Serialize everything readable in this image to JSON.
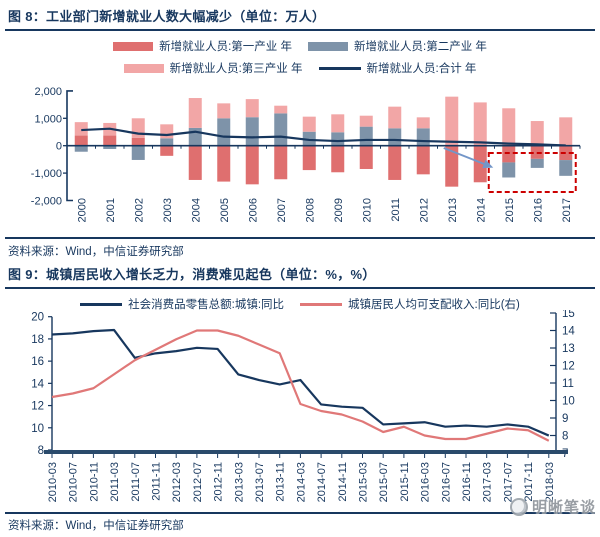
{
  "colors": {
    "navy": "#17375e",
    "axis_bar": "#2a4a6b",
    "bar_first_industry": "#df6f6f",
    "bar_second_industry": "#7e93a9",
    "bar_third_industry": "#f2a6a6",
    "line_total": "#17375e",
    "line_retail": "#17375e",
    "line_income": "#e07878",
    "dashed_box": "#cc0000",
    "arrow_blue": "#7396c8",
    "watermark_gray": "#8d939a"
  },
  "sources": {
    "figure8": "资料来源：Wind，中信证券研究部",
    "figure9": "资料来源：Wind，中信证券研究部"
  },
  "watermark": {
    "text": "明晰笔谈"
  },
  "chart_data": [
    {
      "type": "bar",
      "title": "图 8：工业部门新增就业人数大幅减少（单位：万人）",
      "categories": [
        "2000",
        "2001",
        "2002",
        "2003",
        "2004",
        "2005",
        "2006",
        "2007",
        "2008",
        "2009",
        "2010",
        "2011",
        "2012",
        "2013",
        "2014",
        "2015",
        "2016",
        "2017"
      ],
      "bar_series": [
        {
          "name": "新增就业人员:第一产业 年",
          "color": "#df6f6f",
          "values": [
            370,
            370,
            290,
            -370,
            -1250,
            -1310,
            -1410,
            -1225,
            -890,
            -970,
            -850,
            -1250,
            -1045,
            -1495,
            -1335,
            -610,
            -480,
            -525
          ]
        },
        {
          "name": "新增就业人员:第二产业 年",
          "color": "#7e93a9",
          "values": [
            -220,
            -120,
            -520,
            270,
            650,
            1000,
            1040,
            1180,
            510,
            490,
            695,
            635,
            635,
            0,
            0,
            -550,
            -330,
            -575
          ]
        },
        {
          "name": "新增就业人员:第三产业 年",
          "color": "#f2a6a6",
          "values": [
            490,
            460,
            710,
            510,
            1090,
            545,
            660,
            280,
            550,
            655,
            400,
            790,
            400,
            1790,
            1580,
            1365,
            900,
            1035
          ]
        }
      ],
      "line_series": {
        "name": "新增就业人员:合计 年",
        "color": "#17375e",
        "values": [
          570,
          620,
          440,
          390,
          510,
          330,
          305,
          330,
          210,
          170,
          210,
          210,
          170,
          145,
          120,
          75,
          50,
          10
        ]
      },
      "ylim": [
        -2000,
        2000
      ],
      "yticks": {
        "values": [
          2000,
          1000,
          0,
          -1000,
          -2000
        ],
        "labels": [
          "2,000",
          "1,000",
          "0",
          "-1,000",
          "-2,000"
        ]
      },
      "annotations": {
        "dashed_box": {
          "from_year": "2015",
          "to_year": "2017",
          "color": "#cc0000"
        },
        "arrow": {
          "from_year": "2013",
          "to_year": "2015",
          "color": "#7396c8"
        }
      }
    },
    {
      "type": "line",
      "title": "图 9：城镇居民收入增长乏力，消费难见起色（单位：%，%）",
      "x": [
        "2010-03",
        "2010-07",
        "2010-11",
        "2011-03",
        "2011-07",
        "2011-11",
        "2012-03",
        "2012-07",
        "2012-11",
        "2013-03",
        "2013-07",
        "2013-11",
        "2014-03",
        "2014-07",
        "2014-11",
        "2015-03",
        "2015-07",
        "2015-11",
        "2016-03",
        "2016-07",
        "2016-11",
        "2017-03",
        "2017-07",
        "2017-11",
        "2018-03"
      ],
      "series": [
        {
          "name": "社会消费品零售总额:城镇:同比",
          "axis": "left",
          "color": "#17375e",
          "values": [
            18.4,
            18.5,
            18.7,
            18.8,
            16.3,
            16.7,
            16.9,
            17.2,
            17.1,
            14.8,
            14.3,
            13.9,
            14.3,
            12.1,
            11.9,
            11.8,
            10.3,
            10.4,
            10.5,
            10.1,
            10.2,
            10.1,
            10.3,
            10.1,
            9.3
          ]
        },
        {
          "name": "城镇居民人均可支配收入:同比(右)",
          "axis": "right",
          "color": "#e07878",
          "values": [
            10.2,
            10.4,
            10.7,
            11.5,
            12.3,
            12.9,
            13.5,
            14.0,
            14.0,
            13.7,
            13.2,
            12.7,
            9.8,
            9.4,
            9.2,
            8.8,
            8.2,
            8.5,
            8.0,
            7.8,
            7.8,
            8.1,
            8.4,
            8.3,
            7.7
          ]
        }
      ],
      "left_axis": {
        "lim": [
          8,
          20
        ],
        "ticks": [
          20,
          18,
          16,
          14,
          12,
          10,
          8
        ]
      },
      "right_axis": {
        "lim": [
          7,
          15
        ],
        "ticks": [
          15,
          14,
          13,
          12,
          11,
          10,
          9,
          8,
          7
        ]
      },
      "legend_position": "top",
      "grid": false
    }
  ]
}
